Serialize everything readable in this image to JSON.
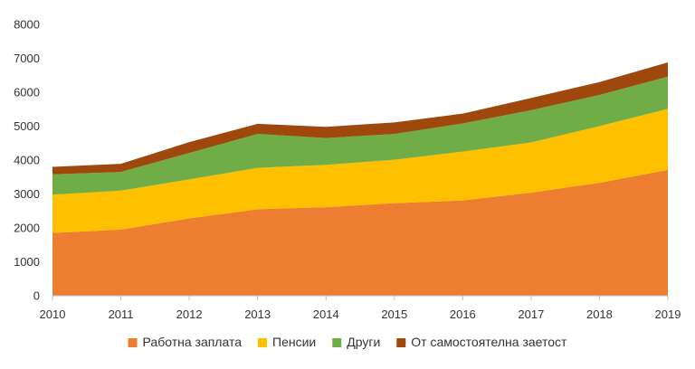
{
  "chart_data": {
    "type": "area",
    "stacked": true,
    "x": [
      "2010",
      "2011",
      "2012",
      "2013",
      "2014",
      "2015",
      "2016",
      "2017",
      "2018",
      "2019"
    ],
    "series": [
      {
        "name": "Работна заплата",
        "color": "#ED7D31",
        "values": [
          1850,
          1950,
          2280,
          2550,
          2610,
          2730,
          2810,
          3040,
          3330,
          3710
        ]
      },
      {
        "name": "Пенсии",
        "color": "#FFC000",
        "values": [
          1130,
          1150,
          1150,
          1220,
          1250,
          1280,
          1440,
          1480,
          1670,
          1800
        ]
      },
      {
        "name": "Други",
        "color": "#70AD47",
        "values": [
          600,
          550,
          780,
          1000,
          790,
          760,
          830,
          950,
          920,
          950
        ]
      },
      {
        "name": "От самостоятелна заетост",
        "color": "#9E480E",
        "values": [
          220,
          240,
          320,
          300,
          330,
          340,
          290,
          360,
          380,
          420
        ]
      }
    ],
    "title": "",
    "xlabel": "",
    "ylabel": "",
    "ylim": [
      0,
      8000
    ],
    "yticks": [
      "0",
      "1000",
      "2000",
      "3000",
      "4000",
      "5000",
      "6000",
      "7000",
      "8000"
    ],
    "grid": false,
    "legend": "bottom-center"
  }
}
